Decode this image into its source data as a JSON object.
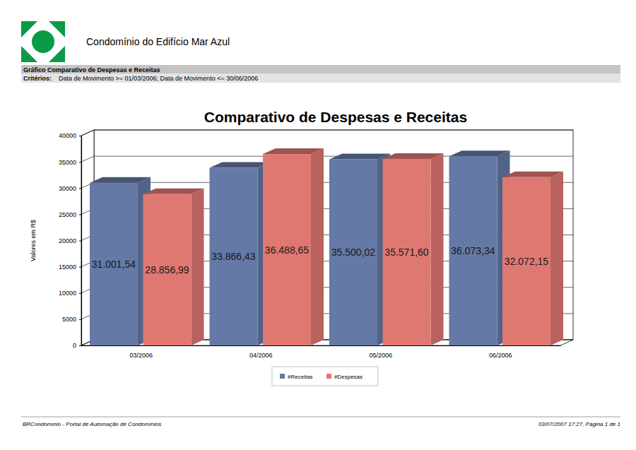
{
  "page": {
    "organization": "Condomínio do Edifício Mar Azul",
    "report_title": "Gráfico Comparativo de Despesas e Receitas",
    "criteria_label": "Critérios:",
    "criteria": "Data de Movimento >= 01/03/2006; Data de Movimento <= 30/06/2006",
    "footer_left": "BRCondomínio - Portal de Automação de Condomínios",
    "footer_right": "03/07/2007 17:27, Página 1 de 1"
  },
  "chart_data": {
    "type": "bar",
    "title": "Comparativo de Despesas e Receitas",
    "y_label": "Valores em R$",
    "categories": [
      "03/2006",
      "04/2006",
      "05/2006",
      "06/2006"
    ],
    "series": [
      {
        "name": "#Receitas",
        "color": "#6479a5",
        "values": [
          31001.54,
          33866.43,
          35500.02,
          36073.34
        ],
        "value_labels": [
          "31.001,54",
          "33.866,43",
          "35.500,02",
          "36.073,34"
        ]
      },
      {
        "name": "#Despesas",
        "color": "#e07872",
        "values": [
          28856.99,
          36488.65,
          35571.6,
          32072.15
        ],
        "value_labels": [
          "28.856,99",
          "36.488,65",
          "35.571,60",
          "32.072,15"
        ]
      }
    ],
    "ylim": [
      0,
      40000
    ],
    "yticks": [
      0,
      5000,
      10000,
      15000,
      20000,
      25000,
      30000,
      35000,
      40000
    ],
    "grid": true,
    "legend": "bottom",
    "data_labels": true
  }
}
